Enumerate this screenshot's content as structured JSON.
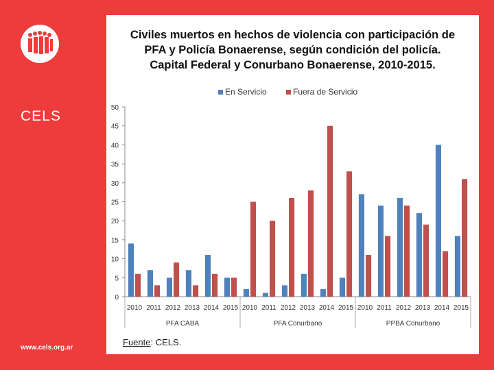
{
  "sidebar": {
    "brand": "CELS",
    "url": "www.cels.org.ar",
    "logo_icon": "cels-logo-icon"
  },
  "source": {
    "label": "Fuente",
    "text": ": CELS."
  },
  "colors": {
    "background": "#ee3b3b",
    "series_en_servicio": "#4f81bd",
    "series_fuera_servicio": "#c0504d"
  },
  "chart_data": {
    "type": "bar",
    "title_lines": [
      "Civiles muertos en hechos de violencia con participación de",
      "PFA y Policía Bonaerense, según condición del policía.",
      "Capital Federal y Conurbano Bonaerense, 2010-2015."
    ],
    "categories": [
      "2010",
      "2011",
      "2012",
      "2013",
      "2014",
      "2015",
      "2010",
      "2011",
      "2012",
      "2013",
      "2014",
      "2015",
      "2010",
      "2011",
      "2012",
      "2013",
      "2014",
      "2015"
    ],
    "groups": [
      {
        "label": "PFA CABA",
        "count": 6
      },
      {
        "label": "PFA Conurbano",
        "count": 6
      },
      {
        "label": "PPBA Conurbano",
        "count": 6
      }
    ],
    "series": [
      {
        "name": "En Servicio",
        "color": "#4f81bd",
        "values": [
          14,
          7,
          5,
          7,
          11,
          5,
          2,
          1,
          3,
          6,
          2,
          5,
          27,
          24,
          26,
          22,
          40,
          16
        ]
      },
      {
        "name": "Fuera de Servicio",
        "color": "#c0504d",
        "values": [
          6,
          3,
          9,
          3,
          6,
          5,
          25,
          20,
          26,
          28,
          45,
          33,
          11,
          16,
          24,
          19,
          12,
          31
        ]
      }
    ],
    "ylim": [
      0,
      50
    ],
    "yticks": [
      0,
      5,
      10,
      15,
      20,
      25,
      30,
      35,
      40,
      45,
      50
    ],
    "legend_position": "top",
    "grid": false
  }
}
